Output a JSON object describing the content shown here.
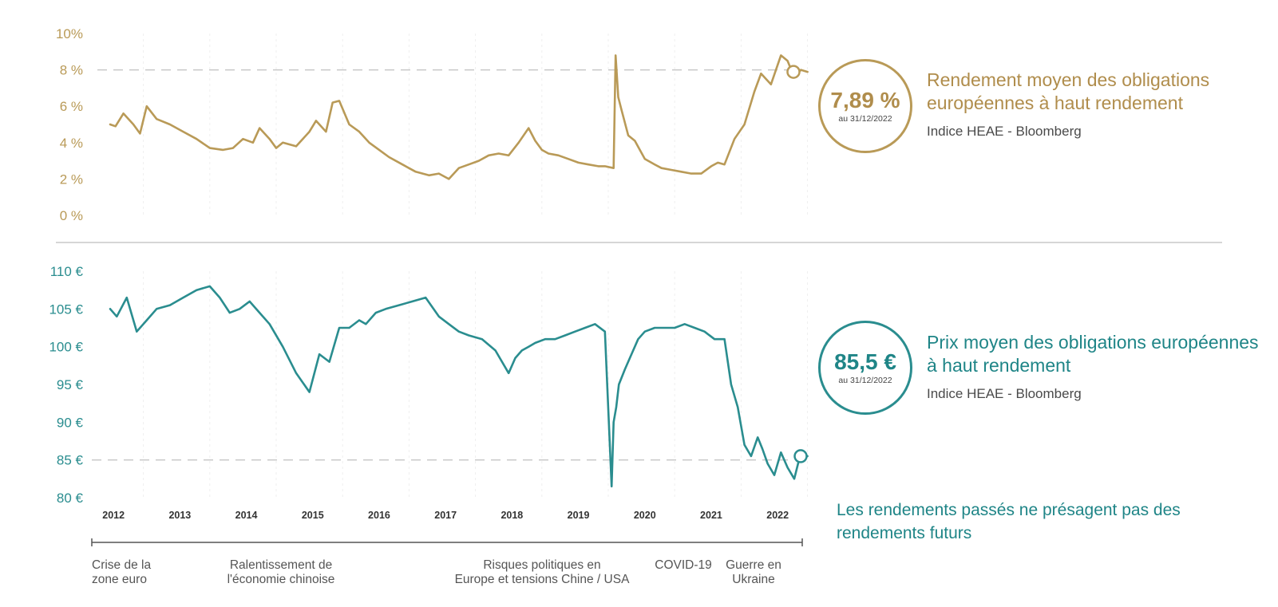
{
  "chart_data": [
    {
      "type": "line",
      "title": "Rendement moyen des obligations européennes à haut rendement",
      "subtitle": "Indice HEAE - Bloomberg",
      "color": "#b99a57",
      "ylim": [
        0,
        10
      ],
      "yticks": [
        "0 %",
        "2 %",
        "4 %",
        "6 %",
        "8 %",
        "10%"
      ],
      "ytick_values": [
        0,
        2,
        4,
        6,
        8,
        10
      ],
      "reference_value": 8,
      "last_value": 7.89,
      "badge_value": "7,89 %",
      "badge_date": "au 31/12/2022",
      "x": [
        2012.0,
        2012.08,
        2012.2,
        2012.35,
        2012.45,
        2012.55,
        2012.7,
        2012.9,
        2013.1,
        2013.3,
        2013.5,
        2013.7,
        2013.85,
        2014.0,
        2014.15,
        2014.25,
        2014.4,
        2014.5,
        2014.6,
        2014.8,
        2015.0,
        2015.1,
        2015.25,
        2015.35,
        2015.45,
        2015.6,
        2015.75,
        2015.9,
        2016.05,
        2016.2,
        2016.4,
        2016.6,
        2016.8,
        2016.95,
        2017.1,
        2017.25,
        2017.4,
        2017.55,
        2017.7,
        2017.85,
        2018.0,
        2018.15,
        2018.3,
        2018.4,
        2018.5,
        2018.6,
        2018.75,
        2018.9,
        2019.05,
        2019.2,
        2019.35,
        2019.45,
        2019.58,
        2019.61,
        2019.65,
        2019.7,
        2019.8,
        2019.9,
        2020.05,
        2020.2,
        2020.3,
        2020.45,
        2020.6,
        2020.75,
        2020.9,
        2021.05,
        2021.15,
        2021.25,
        2021.4,
        2021.55,
        2021.7,
        2021.8,
        2021.95,
        2022.1,
        2022.2,
        2022.3,
        2022.4,
        2022.5
      ],
      "values": [
        5.0,
        4.9,
        5.6,
        5.0,
        4.5,
        6.0,
        5.3,
        5.0,
        4.6,
        4.2,
        3.7,
        3.6,
        3.7,
        4.2,
        4.0,
        4.8,
        4.2,
        3.7,
        4.0,
        3.8,
        4.6,
        5.2,
        4.6,
        6.2,
        6.3,
        5.0,
        4.6,
        4.0,
        3.6,
        3.2,
        2.8,
        2.4,
        2.2,
        2.3,
        2.0,
        2.6,
        2.8,
        3.0,
        3.3,
        3.4,
        3.3,
        4.0,
        4.8,
        4.1,
        3.6,
        3.4,
        3.3,
        3.1,
        2.9,
        2.8,
        2.7,
        2.7,
        2.6,
        8.8,
        6.5,
        5.8,
        4.4,
        4.1,
        3.1,
        2.8,
        2.6,
        2.5,
        2.4,
        2.3,
        2.3,
        2.7,
        2.9,
        2.8,
        4.2,
        5.0,
        6.8,
        7.8,
        7.2,
        8.8,
        8.5,
        7.6,
        8.0,
        7.89
      ]
    },
    {
      "type": "line",
      "title": "Prix moyen des obligations européennes à haut rendement",
      "subtitle": "Indice HEAE - Bloomberg",
      "color": "#2a8d8f",
      "ylim": [
        80,
        110
      ],
      "yticks": [
        "80 €",
        "85 €",
        "90 €",
        "95 €",
        "100 €",
        "105 €",
        "110 €"
      ],
      "ytick_values": [
        80,
        85,
        90,
        95,
        100,
        105,
        110
      ],
      "reference_value": 85,
      "last_value": 85.5,
      "badge_value": "85,5 €",
      "badge_date": "au 31/12/2022",
      "x": [
        2012.0,
        2012.1,
        2012.25,
        2012.4,
        2012.55,
        2012.7,
        2012.9,
        2013.1,
        2013.3,
        2013.5,
        2013.65,
        2013.8,
        2013.95,
        2014.1,
        2014.25,
        2014.4,
        2014.6,
        2014.8,
        2015.0,
        2015.15,
        2015.3,
        2015.45,
        2015.6,
        2015.75,
        2015.85,
        2016.0,
        2016.15,
        2016.35,
        2016.55,
        2016.75,
        2016.95,
        2017.1,
        2017.25,
        2017.4,
        2017.6,
        2017.8,
        2018.0,
        2018.1,
        2018.2,
        2018.3,
        2018.4,
        2018.55,
        2018.7,
        2018.85,
        2019.0,
        2019.15,
        2019.3,
        2019.45,
        2019.55,
        2019.58,
        2019.62,
        2019.66,
        2019.75,
        2019.85,
        2019.95,
        2020.05,
        2020.2,
        2020.35,
        2020.5,
        2020.65,
        2020.8,
        2020.95,
        2021.1,
        2021.25,
        2021.35,
        2021.45,
        2021.55,
        2021.65,
        2021.75,
        2021.82,
        2021.9,
        2022.0,
        2022.1,
        2022.2,
        2022.3,
        2022.4,
        2022.5
      ],
      "values": [
        105.0,
        104.0,
        106.5,
        102.0,
        103.5,
        105.0,
        105.5,
        106.5,
        107.5,
        108.0,
        106.5,
        104.5,
        105.0,
        106.0,
        104.5,
        103.0,
        100.0,
        96.5,
        94.0,
        99.0,
        98.0,
        102.5,
        102.5,
        103.5,
        103.0,
        104.5,
        105.0,
        105.5,
        106.0,
        106.5,
        104.0,
        103.0,
        102.0,
        101.5,
        101.0,
        99.5,
        96.5,
        98.5,
        99.5,
        100.0,
        100.5,
        101.0,
        101.0,
        101.5,
        102.0,
        102.5,
        103.0,
        102.0,
        81.5,
        90.0,
        92.0,
        95.0,
        97.0,
        99.0,
        101.0,
        102.0,
        102.5,
        102.5,
        102.5,
        103.0,
        102.5,
        102.0,
        101.0,
        101.0,
        95.0,
        92.0,
        87.0,
        85.5,
        88.0,
        86.5,
        84.5,
        83.0,
        86.0,
        84.0,
        82.5,
        86.0,
        85.5
      ]
    }
  ],
  "x_axis": {
    "years": [
      "2012",
      "2013",
      "2014",
      "2015",
      "2016",
      "2017",
      "2018",
      "2019",
      "2020",
      "2021",
      "2022"
    ],
    "events": [
      {
        "line1": "Crise de la",
        "line2": "zone euro"
      },
      {
        "line1": "Ralentissement de",
        "line2": "l'économie chinoise"
      },
      {
        "line1": "Risques politiques en",
        "line2": "Europe et tensions Chine / USA"
      },
      {
        "line1": "COVID-19",
        "line2": ""
      },
      {
        "line1": "Guerre en",
        "line2": "Ukraine"
      }
    ]
  },
  "disclaimer": "Les rendements passés ne présagent pas des rendements futurs"
}
